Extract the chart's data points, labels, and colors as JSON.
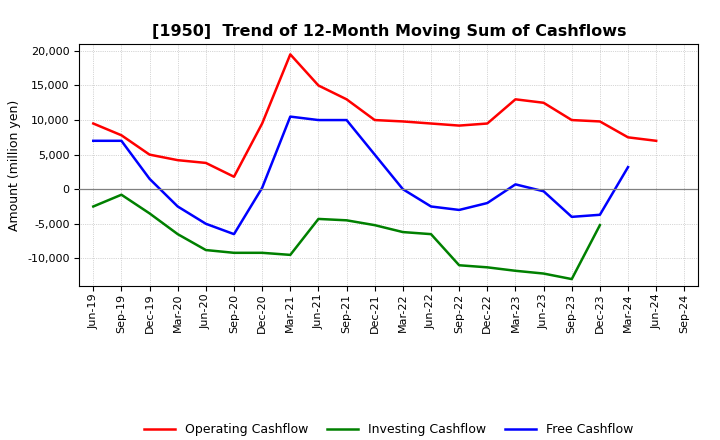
{
  "title": "[1950]  Trend of 12-Month Moving Sum of Cashflows",
  "ylabel": "Amount (million yen)",
  "xlabels": [
    "Jun-19",
    "Sep-19",
    "Dec-19",
    "Mar-20",
    "Jun-20",
    "Sep-20",
    "Dec-20",
    "Mar-21",
    "Jun-21",
    "Sep-21",
    "Dec-21",
    "Mar-22",
    "Jun-22",
    "Sep-22",
    "Dec-22",
    "Mar-23",
    "Jun-23",
    "Sep-23",
    "Dec-23",
    "Mar-24",
    "Jun-24",
    "Sep-24"
  ],
  "operating": [
    9500,
    7800,
    5000,
    4200,
    3800,
    1800,
    9500,
    19500,
    15000,
    13000,
    10000,
    9800,
    9500,
    9200,
    9500,
    13000,
    12500,
    10000,
    9800,
    7500,
    7000,
    null
  ],
  "investing": [
    -2500,
    -800,
    -3500,
    -6500,
    -8800,
    -9200,
    -9200,
    -9500,
    -4300,
    -4500,
    -5200,
    -6200,
    -6500,
    -11000,
    -11300,
    -11800,
    -12200,
    -13000,
    -5200,
    null,
    null,
    null
  ],
  "free": [
    7000,
    7000,
    1500,
    -2500,
    -5000,
    -6500,
    200,
    10500,
    10000,
    10000,
    5000,
    0,
    -2500,
    -3000,
    -2000,
    700,
    -300,
    -4000,
    -3700,
    3200,
    null,
    null
  ],
  "ylim": [
    -14000,
    21000
  ],
  "yticks": [
    -10000,
    -5000,
    0,
    5000,
    10000,
    15000,
    20000
  ],
  "operating_color": "#ff0000",
  "investing_color": "#008000",
  "free_color": "#0000ff",
  "background_color": "#ffffff",
  "grid_color": "#b0b0b0",
  "title_fontsize": 11.5,
  "label_fontsize": 9,
  "tick_fontsize": 8
}
